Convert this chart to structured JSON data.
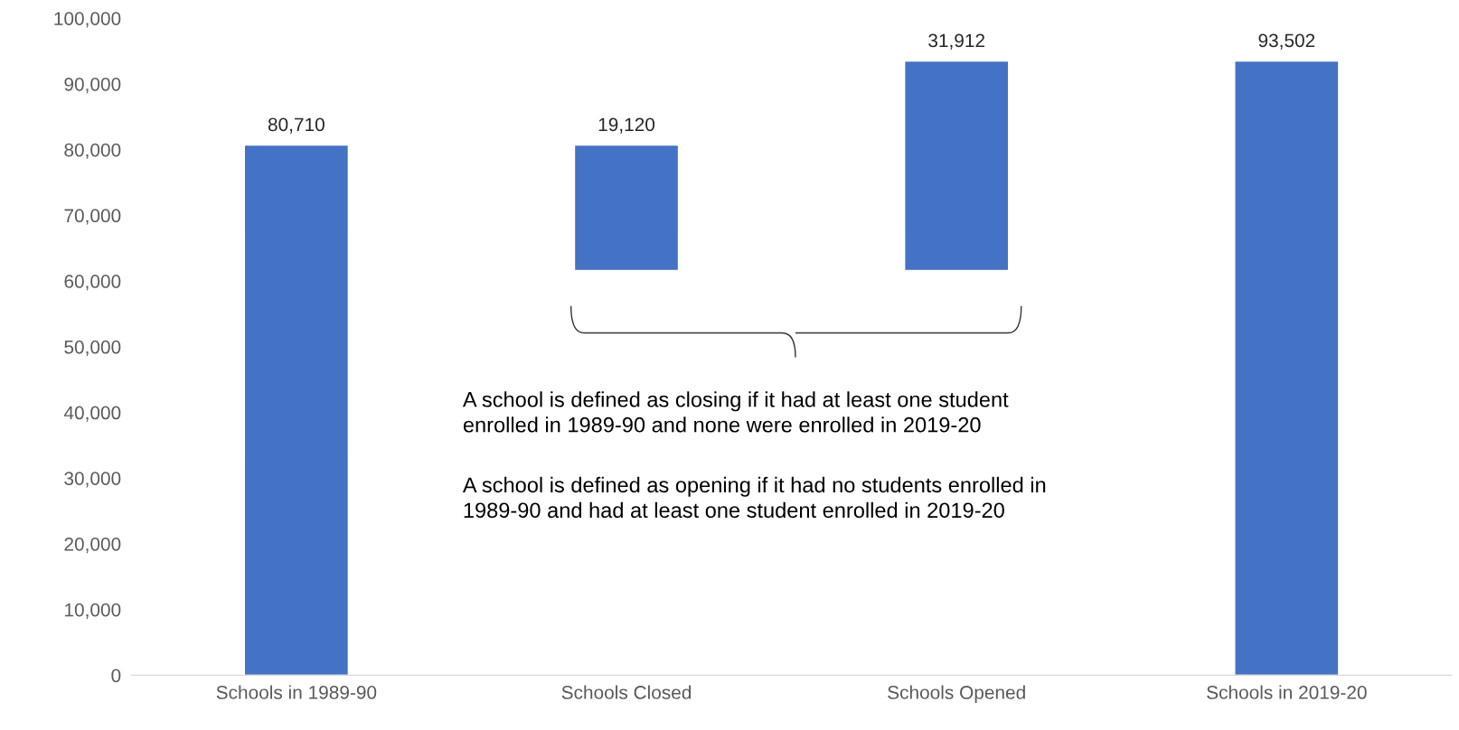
{
  "chart_data": {
    "type": "bar",
    "categories": [
      "Schools in 1989-90",
      "Schools Closed",
      "Schools Opened",
      "Schools in 2019-20"
    ],
    "values": [
      80710,
      19120,
      31912,
      93502
    ],
    "base": [
      0,
      61590,
      61590,
      0
    ],
    "color": "#4472c4",
    "value_labels": [
      "80,710",
      "19,120",
      "31,912",
      "93,502"
    ],
    "ylim": [
      0,
      100000
    ],
    "yticks": [
      0,
      {
        "value": 10000,
        "label": "10,000"
      },
      {
        "value": 20000,
        "label": "20,000"
      },
      {
        "value": 30000,
        "label": "30,000"
      },
      {
        "value": 40000,
        "label": "40,000"
      },
      {
        "value": 50000,
        "label": "50,000"
      },
      {
        "value": 60000,
        "label": "60,000"
      },
      {
        "value": 70000,
        "label": "70,000"
      },
      {
        "value": 80000,
        "label": "80,000"
      },
      {
        "value": 90000,
        "label": "90,000"
      },
      {
        "value": 100000,
        "label": "100,000"
      }
    ],
    "grid": false,
    "legend": false,
    "annotations": [
      "A school is defined as closing if it had at least one student\nenrolled in 1989-90 and none were enrolled in 2019-20",
      "A school is defined as opening if it had no students enrolled in\n1989-90 and had at least one student enrolled in 2019-20"
    ]
  }
}
